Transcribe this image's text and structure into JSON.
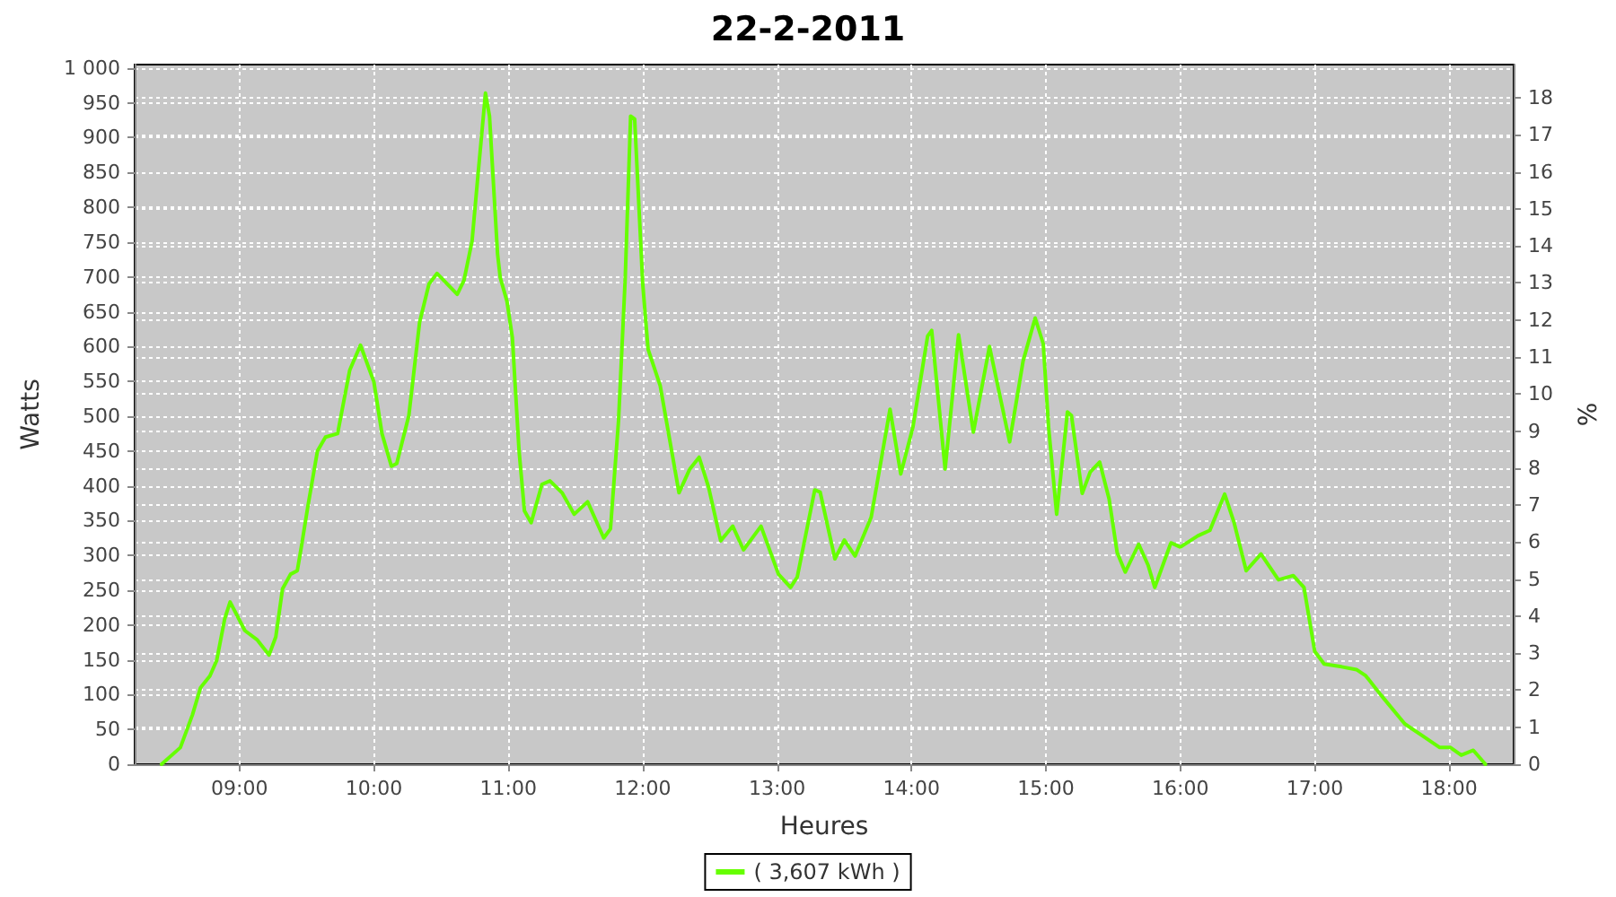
{
  "chart_data": {
    "type": "line",
    "title": "22-2-2011",
    "xlabel": "Heures",
    "ylabel": "Watts",
    "y2label": "%",
    "xlim": [
      8.22,
      18.48
    ],
    "xticks": [
      {
        "value": 9,
        "label": "09:00"
      },
      {
        "value": 10,
        "label": "10:00"
      },
      {
        "value": 11,
        "label": "11:00"
      },
      {
        "value": 12,
        "label": "12:00"
      },
      {
        "value": 13,
        "label": "13:00"
      },
      {
        "value": 14,
        "label": "14:00"
      },
      {
        "value": 15,
        "label": "15:00"
      },
      {
        "value": 16,
        "label": "16:00"
      },
      {
        "value": 17,
        "label": "17:00"
      },
      {
        "value": 18,
        "label": "18:00"
      }
    ],
    "ylim": [
      0,
      1005
    ],
    "yticks": [
      0,
      50,
      100,
      150,
      200,
      250,
      300,
      350,
      400,
      450,
      500,
      550,
      600,
      650,
      700,
      750,
      800,
      850,
      900,
      950,
      {
        "value": 1000,
        "label": "1 000"
      }
    ],
    "y2lim": [
      0,
      18.9
    ],
    "y2ticks": [
      0,
      1,
      2,
      3,
      4,
      5,
      6,
      7,
      8,
      9,
      10,
      11,
      12,
      13,
      14,
      15,
      16,
      17,
      18
    ],
    "grid": true,
    "legend": "bottom",
    "marker": "none",
    "line_style": "solid",
    "series": [
      {
        "name": "( 3,607 kWh )",
        "color": "#66ff00",
        "x": [
          8.42,
          8.56,
          8.65,
          8.71,
          8.78,
          8.83,
          8.89,
          8.93,
          9.04,
          9.13,
          9.22,
          9.27,
          9.32,
          9.38,
          9.43,
          9.46,
          9.51,
          9.58,
          9.64,
          9.73,
          9.82,
          9.9,
          10.0,
          10.06,
          10.13,
          10.17,
          10.26,
          10.34,
          10.41,
          10.47,
          10.62,
          10.67,
          10.73,
          10.77,
          10.83,
          10.86,
          10.92,
          10.94,
          10.99,
          11.03,
          11.08,
          11.12,
          11.17,
          11.25,
          11.31,
          11.4,
          11.49,
          11.59,
          11.71,
          11.76,
          11.82,
          11.87,
          11.91,
          11.94,
          12.0,
          12.04,
          12.13,
          12.2,
          12.27,
          12.35,
          12.42,
          12.49,
          12.58,
          12.67,
          12.75,
          12.88,
          13.01,
          13.1,
          13.15,
          13.28,
          13.32,
          13.43,
          13.5,
          13.58,
          13.7,
          13.84,
          13.92,
          14.01,
          14.12,
          14.15,
          14.25,
          14.35,
          14.46,
          14.58,
          14.73,
          14.83,
          14.92,
          14.98,
          15.02,
          15.08,
          15.13,
          15.16,
          15.19,
          15.27,
          15.33,
          15.4,
          15.47,
          15.53,
          15.59,
          15.69,
          15.76,
          15.81,
          15.87,
          15.93,
          16.0,
          16.13,
          16.22,
          16.33,
          16.4,
          16.49,
          16.6,
          16.73,
          16.84,
          16.92,
          17.0,
          17.07,
          17.2,
          17.31,
          17.38,
          17.49,
          17.67,
          17.8,
          17.93,
          18.01,
          18.09,
          18.18,
          18.27
        ],
        "values": [
          0,
          24,
          71,
          110,
          127,
          149,
          209,
          233,
          192,
          179,
          157,
          183,
          252,
          273,
          278,
          312,
          372,
          450,
          470,
          475,
          566,
          602,
          549,
          475,
          428,
          432,
          501,
          635,
          690,
          705,
          675,
          695,
          751,
          837,
          964,
          931,
          733,
          699,
          665,
          613,
          450,
          364,
          347,
          402,
          407,
          390,
          359,
          377,
          325,
          338,
          493,
          699,
          931,
          927,
          690,
          596,
          544,
          467,
          390,
          424,
          441,
          398,
          321,
          342,
          308,
          342,
          273,
          254,
          269,
          394,
          391,
          295,
          322,
          299,
          355,
          510,
          417,
          484,
          615,
          623,
          424,
          617,
          477,
          600,
          463,
          579,
          641,
          604,
          484,
          359,
          450,
          506,
          501,
          389,
          420,
          434,
          381,
          304,
          276,
          316,
          286,
          254,
          286,
          318,
          312,
          328,
          336,
          388,
          347,
          278,
          302,
          265,
          271,
          254,
          162,
          144,
          140,
          136,
          127,
          100,
          58,
          41,
          24,
          24,
          13,
          20,
          0
        ]
      }
    ]
  }
}
